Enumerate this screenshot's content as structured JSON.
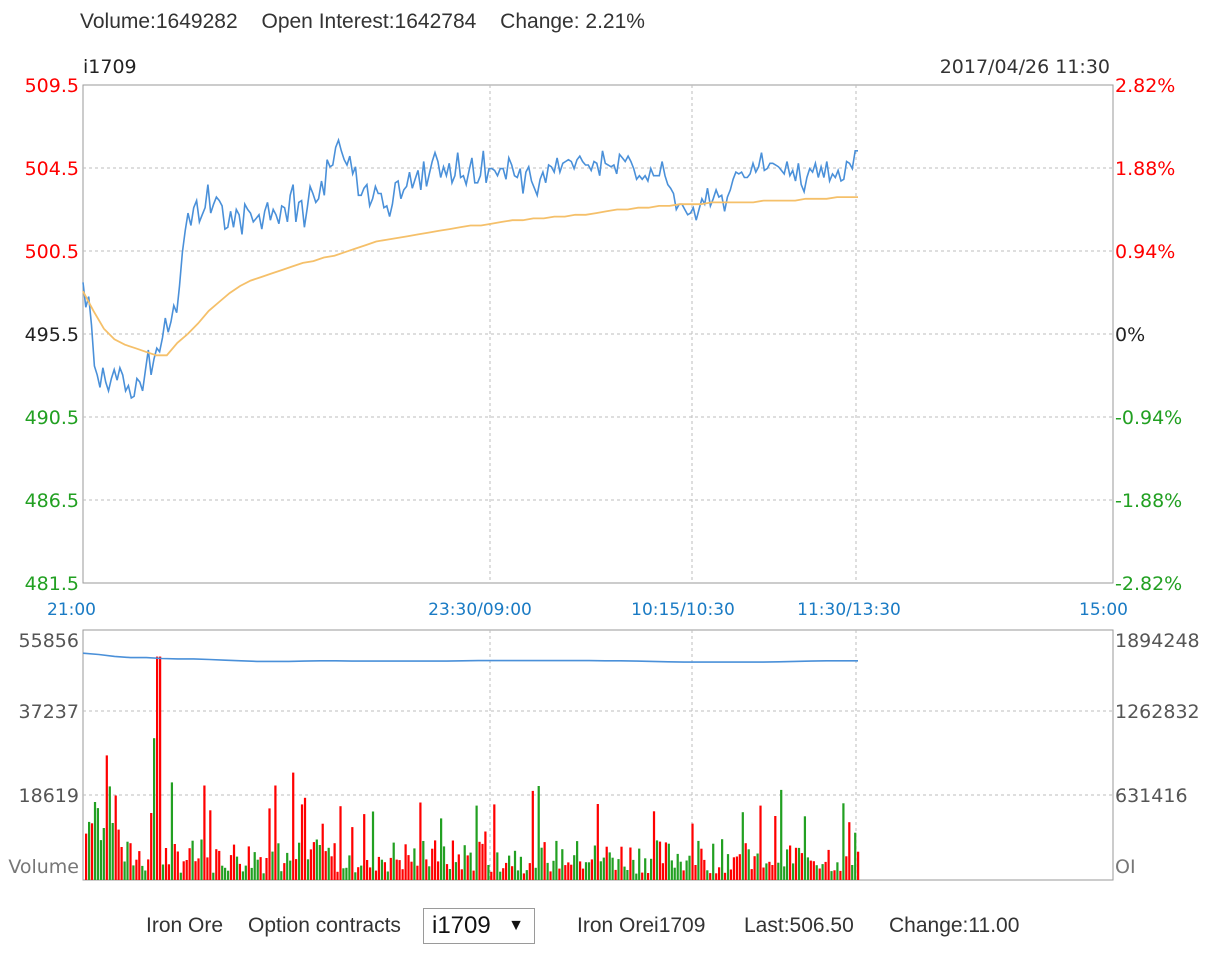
{
  "header": {
    "volume": "Volume:1649282",
    "open_interest": "Open Interest:1642784",
    "change": "Change: 2.21%",
    "symbol": "i1709",
    "datetime": "2017/04/26 11:30"
  },
  "footer": {
    "product": "Iron Ore",
    "option_label": "Option contracts",
    "selected_contract": "i1709",
    "quote_name": "Iron Orei1709",
    "last": "Last:506.50",
    "change": "Change:11.00"
  },
  "colors": {
    "price_line": "#4a90d9",
    "avg_line": "#f5c06a",
    "up": "#ff0000",
    "down": "#22a022",
    "neutral": "#222222",
    "axis_time": "#1a7bc4",
    "grid": "#bdbdbd"
  },
  "chart_data": [
    {
      "type": "line",
      "name": "price",
      "ylim": [
        481.5,
        509.5
      ],
      "x_ticks": [
        "21:00",
        "23:30/09:00",
        "10:15/10:30",
        "11:30/13:30",
        "15:00"
      ],
      "y_ticks_left": [
        "509.5",
        "504.5",
        "500.5",
        "495.5",
        "490.5",
        "486.5",
        "481.5"
      ],
      "y_ticks_right": [
        "2.82%",
        "1.88%",
        "0.94%",
        "0%",
        "-0.94%",
        "-1.88%",
        "-2.82%"
      ],
      "reference_price": 495.5,
      "series": [
        {
          "values": [
            498.4,
            497.0,
            497.6,
            496.0,
            493.7,
            493.2,
            492.5,
            493.6,
            492.8,
            492.3,
            493.0,
            493.5,
            492.9,
            493.6,
            493.2,
            492.3,
            492.6,
            491.9,
            492.0,
            493.0,
            492.8,
            492.3,
            493.5,
            494.6,
            493.2,
            494.1,
            494.7,
            494.5,
            495.3,
            496.4,
            495.6,
            496.2,
            497.1,
            496.7,
            498.2,
            500.1,
            501.3,
            502.3,
            501.6,
            502.6,
            503.0,
            501.8,
            502.2,
            502.6,
            503.9,
            502.3,
            502.8,
            503.2,
            503.0,
            502.7,
            501.4,
            501.5,
            502.4,
            501.5,
            502.5,
            502.2,
            501.1,
            502.8,
            502.5,
            502.3,
            501.8,
            502.0,
            502.2,
            501.4,
            502.4,
            502.9,
            501.9,
            502.5,
            502.2,
            501.7,
            502.7,
            502.6,
            501.8,
            503.3,
            503.9,
            501.8,
            502.9,
            503.0,
            501.5,
            502.6,
            503.8,
            503.4,
            502.9,
            503.1,
            504.1,
            503.3,
            505.3,
            504.9,
            505.0,
            506.0,
            506.4,
            505.8,
            505.3,
            505.0,
            505.5,
            504.5,
            504.9,
            503.3,
            503.3,
            503.7,
            503.9,
            502.7,
            503.1,
            503.8,
            503.4,
            503.4,
            502.6,
            502.7,
            502.1,
            502.8,
            504.0,
            504.1,
            503.1,
            503.6,
            503.8,
            504.6,
            503.7,
            504.2,
            504.7,
            503.6,
            505.2,
            503.8,
            504.5,
            505.2,
            505.7,
            505.2,
            504.3,
            504.9,
            504.4,
            505.1,
            504.0,
            504.4,
            505.7,
            504.3,
            504.4,
            503.9,
            504.7,
            505.4,
            504.0,
            504.0,
            504.4,
            505.8,
            504.0,
            504.8,
            504.8,
            504.7,
            504.4,
            504.8,
            504.8,
            504.2,
            505.4,
            505.0,
            504.4,
            504.3,
            504.8,
            503.4,
            504.6,
            504.9,
            504.1,
            503.7,
            503.3,
            504.2,
            504.6,
            504.0,
            505.0,
            504.9,
            504.6,
            505.4,
            504.6,
            505.1,
            505.2,
            505.3,
            505.2,
            504.8,
            505.3,
            505.5,
            505.2,
            505.0,
            505.0,
            504.7,
            505.2,
            505.1,
            504.4,
            505.8,
            505.1,
            505.0,
            504.9,
            505.0,
            504.5,
            505.6,
            505.4,
            505.2,
            505.5,
            505.2,
            504.8,
            504.2,
            504.4,
            504.2,
            504.4,
            504.1,
            504.8,
            504.4,
            504.4,
            504.4,
            505.2,
            504.4,
            503.9,
            503.7,
            503.4,
            502.5,
            502.8,
            502.8,
            502.5,
            502.2,
            502.3,
            502.6,
            501.9,
            502.5,
            503.1,
            502.8,
            503.7,
            502.7,
            503.1,
            503.6,
            503.2,
            503.3,
            502.4,
            503.2,
            503.6,
            504.2,
            504.6,
            504.5,
            504.6,
            504.3,
            504.3,
            504.5,
            505.1,
            504.6,
            504.9,
            505.7,
            504.7,
            504.8,
            505.1,
            505.1,
            505.0,
            504.9,
            504.7,
            504.5,
            505.2,
            504.4,
            504.7,
            504.1,
            505.1,
            503.9,
            503.5,
            504.3,
            504.8,
            504.6,
            505.1,
            504.3,
            504.9,
            504.3,
            505.2,
            504.1,
            504.5,
            504.3,
            504.7,
            504.1,
            504.2,
            505.2,
            505.1,
            504.8,
            505.8,
            505.8
          ],
          "avg_values": [
            497.9,
            496.8,
            495.8,
            495.2,
            494.9,
            494.7,
            494.5,
            494.3,
            494.3,
            495.0,
            495.5,
            496.1,
            496.8,
            497.3,
            497.8,
            498.2,
            498.5,
            498.7,
            498.9,
            499.1,
            499.3,
            499.5,
            499.6,
            499.8,
            499.9,
            500.1,
            500.3,
            500.5,
            500.7,
            500.8,
            500.9,
            501.0,
            501.1,
            501.2,
            501.3,
            501.4,
            501.5,
            501.6,
            501.6,
            501.7,
            501.8,
            501.9,
            501.9,
            502.0,
            502.0,
            502.1,
            502.1,
            502.2,
            502.2,
            502.3,
            502.4,
            502.5,
            502.5,
            502.6,
            502.6,
            502.7,
            502.7,
            502.8,
            502.8,
            502.8,
            502.9,
            502.9,
            502.9,
            502.9,
            502.9,
            503.0,
            503.0,
            503.0,
            503.0,
            503.1,
            503.1,
            503.1,
            503.2,
            503.2,
            503.2
          ]
        }
      ]
    },
    {
      "type": "bar",
      "name": "volume",
      "ylim": [
        0,
        55856
      ],
      "y_ticks_left": [
        "55856",
        "37237",
        "18619"
      ],
      "y_ticks_right": [
        "1894248",
        "1262832",
        "631416"
      ],
      "ylabel": "Volume",
      "ylabel_right": "OI",
      "oi_ylim": [
        0,
        1894248
      ],
      "oi_values": [
        1790000,
        1780000,
        1765000,
        1755000,
        1755000,
        1748000,
        1745000,
        1745000,
        1740000,
        1735000,
        1730000,
        1725000,
        1725000,
        1725000,
        1728000,
        1730000,
        1730000,
        1728000,
        1728000,
        1728000,
        1728000,
        1728000,
        1728000,
        1728000,
        1730000,
        1732000,
        1732000,
        1732000,
        1732000,
        1732000,
        1732000,
        1732000,
        1732000,
        1730000,
        1730000,
        1728000,
        1725000,
        1722000,
        1720000,
        1720000,
        1720000,
        1720000,
        1720000,
        1720000,
        1722000,
        1725000,
        1728000,
        1730000,
        1730000,
        1730000
      ]
    }
  ]
}
